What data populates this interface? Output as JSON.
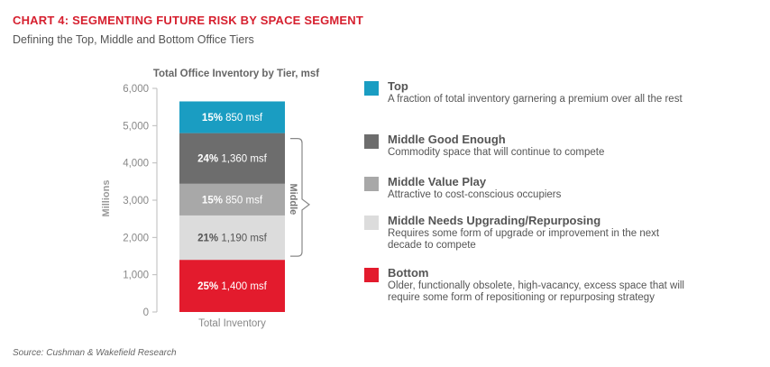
{
  "header": {
    "title": "CHART 4: SEGMENTING FUTURE RISK BY SPACE SEGMENT",
    "subtitle": "Defining the Top, Middle and Bottom Office Tiers"
  },
  "source": "Source: Cushman & Wakefield Research",
  "chart_data": {
    "type": "bar",
    "stacked": true,
    "title": "Total Office Inventory by Tier, msf",
    "ylabel": "Millions",
    "xlabel": "",
    "categories": [
      "Total Inventory"
    ],
    "ylim": [
      0,
      6000
    ],
    "yticks": [
      "0",
      "1,000",
      "2,000",
      "3,000",
      "4,000",
      "5,000",
      "6,000"
    ],
    "grid": false,
    "legend_position": "right",
    "series": [
      {
        "name": "Bottom",
        "value": 1400,
        "pct": "25%",
        "amount": "1,400 msf",
        "color": "#e31b2d",
        "text_color": "#ffffff"
      },
      {
        "name": "Middle Needs Upgrading/Repurposing",
        "value": 1190,
        "pct": "21%",
        "amount": "1,190 msf",
        "color": "#dcdcdc",
        "text_color": "#555555"
      },
      {
        "name": "Middle Value Play",
        "value": 850,
        "pct": "15%",
        "amount": "850 msf",
        "color": "#a8a8a8",
        "text_color": "#ffffff"
      },
      {
        "name": "Middle Good Enough",
        "value": 1360,
        "pct": "24%",
        "amount": "1,360 msf",
        "color": "#6d6d6d",
        "text_color": "#ffffff"
      },
      {
        "name": "Top",
        "value": 850,
        "pct": "15%",
        "amount": "850 msf",
        "color": "#1a9dc2",
        "text_color": "#ffffff"
      }
    ],
    "bracket_label": "Middle"
  },
  "legend": [
    {
      "label": "Top",
      "desc": "A fraction of total inventory garnering a premium over all the rest",
      "color": "#1a9dc2"
    },
    {
      "label": "Middle Good Enough",
      "desc": "Commodity space that will continue to compete",
      "color": "#6d6d6d"
    },
    {
      "label": "Middle Value Play",
      "desc": "Attractive to cost-conscious occupiers",
      "color": "#a8a8a8"
    },
    {
      "label": "Middle Needs Upgrading/Repurposing",
      "desc": "Requires some form of upgrade or improvement in the next decade to compete",
      "color": "#dcdcdc"
    },
    {
      "label": "Bottom",
      "desc": "Older, functionally obsolete, high-vacancy, excess space that will require some form of repositioning or repurposing strategy",
      "color": "#e31b2d"
    }
  ]
}
